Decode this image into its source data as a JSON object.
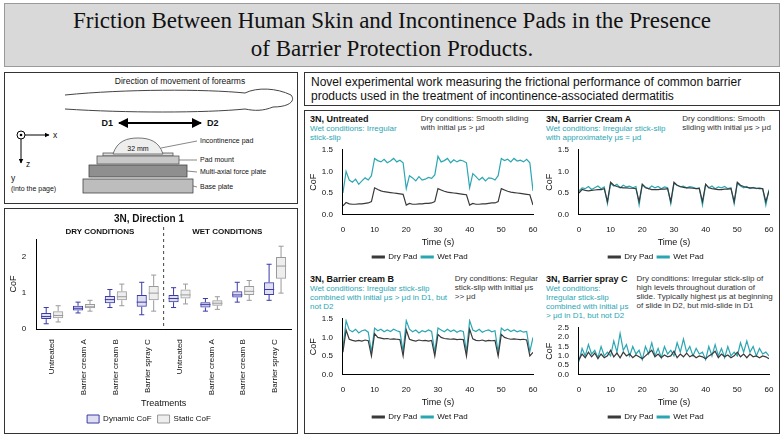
{
  "header": {
    "title": "Friction Between Human Skin and Incontinence Pads in the Presence of Barrier Protection Products."
  },
  "diagram": {
    "direction_label": "Direction of movement of forearms",
    "d1": "D1",
    "d2": "D2",
    "pad": "Incontinence pad",
    "pad_width": "32 mm",
    "mount": "Pad mount",
    "force_plate": "Multi-axial force plate",
    "base_plate": "Base plate",
    "axis_x": "x",
    "axis_y": "y",
    "axis_y_note": "(into the page)",
    "axis_z": "z"
  },
  "heading": "Novel experimental work measuring the frictional performance of common barrier products used in the treatment of incontinence-associated dermatitis",
  "chart_data": [
    {
      "type": "box",
      "title": "3N, Direction 1",
      "groups": [
        "DRY CONDITIONS",
        "WET CONDITIONS"
      ],
      "categories": [
        "Untreated",
        "Barrier cream A",
        "Barrier cream B",
        "Barrier spray C",
        "Untreated",
        "Barrier cream A",
        "Barrier cream B",
        "Barrier spray C"
      ],
      "x_label": "Treatments",
      "y_label": "CoF",
      "ylim": [
        0,
        2.5
      ],
      "yticks": [
        0,
        1,
        2
      ],
      "grid": false,
      "legend": "bottom",
      "series": [
        {
          "name": "Dynamic CoF",
          "color": "#3a3aa8",
          "min": [
            0.15,
            0.45,
            0.6,
            0.4,
            0.6,
            0.5,
            0.75,
            0.8
          ],
          "q1": [
            0.28,
            0.52,
            0.72,
            0.62,
            0.75,
            0.6,
            0.88,
            0.95
          ],
          "median": [
            0.35,
            0.58,
            0.82,
            0.75,
            0.85,
            0.68,
            0.95,
            1.1
          ],
          "q3": [
            0.45,
            0.65,
            0.92,
            0.95,
            0.95,
            0.75,
            1.05,
            1.3
          ],
          "max": [
            0.6,
            0.75,
            1.1,
            1.3,
            1.15,
            0.85,
            1.3,
            1.8
          ]
        },
        {
          "name": "Static CoF",
          "color": "#9a9a9a",
          "min": [
            0.2,
            0.5,
            0.65,
            0.5,
            0.7,
            0.55,
            0.8,
            1.0
          ],
          "q1": [
            0.3,
            0.58,
            0.8,
            0.8,
            0.85,
            0.65,
            0.95,
            1.4
          ],
          "median": [
            0.38,
            0.62,
            0.9,
            1.0,
            0.95,
            0.72,
            1.05,
            1.75
          ],
          "q3": [
            0.5,
            0.7,
            1.05,
            1.2,
            1.1,
            0.8,
            1.2,
            2.0
          ],
          "max": [
            0.65,
            0.8,
            1.25,
            1.5,
            1.25,
            0.9,
            1.35,
            2.3
          ]
        }
      ]
    },
    {
      "type": "line",
      "title": "3N, Untreated",
      "annotations": [
        {
          "text": "Wet conditions: Irregular stick-slip",
          "color": "#2ba6b3"
        },
        {
          "text": "Dry conditions: Smooth sliding with initial μs > μd",
          "color": "#333333"
        }
      ],
      "x": [
        0,
        1,
        2,
        3,
        4,
        5,
        6,
        7,
        8,
        9,
        10,
        11,
        12,
        13,
        14,
        15,
        16,
        17,
        18,
        19,
        20,
        21,
        22,
        23,
        24,
        25,
        26,
        27,
        28,
        29,
        30,
        31,
        32,
        33,
        34,
        35,
        36,
        37,
        38,
        39,
        40,
        41,
        42,
        43,
        44,
        45,
        46,
        47,
        48,
        49,
        50,
        51,
        52,
        53,
        54,
        55,
        56,
        57,
        58,
        59,
        60
      ],
      "xlim": [
        0,
        60
      ],
      "xticks": [
        0,
        10,
        20,
        30,
        40,
        50,
        60
      ],
      "x_label": "Time (s)",
      "y_label": "CoF",
      "ylim": [
        0,
        1.5
      ],
      "yticks": [
        {
          "value": 0,
          "label": "0.0"
        },
        0.5,
        {
          "value": 1,
          "label": "1.0"
        },
        1.5
      ],
      "grid": false,
      "legend": "bottom",
      "series": [
        {
          "name": "Dry Pad",
          "color": "#3a3a3a",
          "values": [
            0.2,
            0.28,
            0.25,
            0.24,
            0.24,
            0.25,
            0.25,
            0.26,
            0.27,
            0.3,
            0.62,
            0.58,
            0.55,
            0.53,
            0.52,
            0.51,
            0.5,
            0.49,
            0.48,
            0.47,
            0.22,
            0.26,
            0.24,
            0.24,
            0.25,
            0.25,
            0.26,
            0.26,
            0.27,
            0.3,
            0.6,
            0.57,
            0.54,
            0.52,
            0.51,
            0.5,
            0.49,
            0.48,
            0.47,
            0.46,
            0.22,
            0.26,
            0.24,
            0.24,
            0.25,
            0.25,
            0.26,
            0.27,
            0.27,
            0.3,
            0.6,
            0.57,
            0.54,
            0.52,
            0.51,
            0.5,
            0.49,
            0.48,
            0.47,
            0.46,
            0.22
          ]
        },
        {
          "name": "Wet Pad",
          "color": "#2ba6b3",
          "values": [
            0.5,
            1.0,
            0.8,
            0.75,
            0.82,
            0.7,
            0.78,
            0.85,
            0.8,
            0.9,
            1.3,
            1.25,
            1.22,
            1.28,
            1.2,
            1.24,
            1.3,
            1.22,
            1.26,
            1.2,
            0.6,
            0.9,
            0.85,
            0.78,
            0.88,
            0.8,
            0.82,
            0.86,
            0.84,
            0.92,
            1.35,
            1.22,
            1.25,
            1.3,
            1.2,
            1.27,
            1.22,
            1.26,
            1.24,
            1.2,
            0.62,
            0.95,
            0.88,
            0.8,
            0.86,
            0.78,
            0.85,
            0.84,
            0.8,
            0.9,
            1.3,
            1.25,
            1.28,
            1.22,
            1.3,
            1.24,
            1.26,
            1.22,
            1.28,
            1.2,
            0.55
          ]
        }
      ]
    },
    {
      "type": "line",
      "title": "3N, Barrier Cream A",
      "annotations": [
        {
          "text": "Wet conditions: Irregular stick-slip with approximately μs = μd",
          "color": "#2ba6b3"
        },
        {
          "text": "Dry conditions: Smooth sliding with initial μs > μd",
          "color": "#333333"
        }
      ],
      "x": [
        0,
        1,
        2,
        3,
        4,
        5,
        6,
        7,
        8,
        9,
        10,
        11,
        12,
        13,
        14,
        15,
        16,
        17,
        18,
        19,
        20,
        21,
        22,
        23,
        24,
        25,
        26,
        27,
        28,
        29,
        30,
        31,
        32,
        33,
        34,
        35,
        36,
        37,
        38,
        39,
        40,
        41,
        42,
        43,
        44,
        45,
        46,
        47,
        48,
        49,
        50,
        51,
        52,
        53,
        54,
        55,
        56,
        57,
        58,
        59,
        60
      ],
      "xlim": [
        0,
        60
      ],
      "xticks": [
        0,
        10,
        20,
        30,
        40,
        50,
        60
      ],
      "x_label": "Time (s)",
      "y_label": "CoF",
      "ylim": [
        0,
        1.5
      ],
      "yticks": [
        {
          "value": 0,
          "label": "0.0"
        },
        0.5,
        {
          "value": 1,
          "label": "1.0"
        },
        1.5
      ],
      "grid": false,
      "legend": "bottom",
      "series": [
        {
          "name": "Dry Pad",
          "color": "#3a3a3a",
          "values": [
            0.5,
            0.58,
            0.56,
            0.55,
            0.56,
            0.57,
            0.58,
            0.58,
            0.6,
            0.3,
            0.75,
            0.68,
            0.65,
            0.63,
            0.62,
            0.62,
            0.61,
            0.61,
            0.6,
            0.3,
            0.7,
            0.62,
            0.6,
            0.58,
            0.58,
            0.58,
            0.59,
            0.59,
            0.6,
            0.3,
            0.75,
            0.68,
            0.65,
            0.63,
            0.62,
            0.62,
            0.61,
            0.6,
            0.6,
            0.3,
            0.7,
            0.62,
            0.6,
            0.59,
            0.58,
            0.58,
            0.59,
            0.59,
            0.6,
            0.3,
            0.75,
            0.68,
            0.65,
            0.63,
            0.62,
            0.62,
            0.61,
            0.6,
            0.6,
            0.3,
            0.55
          ]
        },
        {
          "name": "Wet Pad",
          "color": "#2ba6b3",
          "values": [
            0.55,
            0.62,
            0.6,
            0.65,
            0.58,
            0.62,
            0.66,
            0.6,
            0.64,
            0.25,
            0.72,
            0.66,
            0.7,
            0.62,
            0.68,
            0.64,
            0.66,
            0.62,
            0.65,
            0.22,
            0.7,
            0.64,
            0.6,
            0.66,
            0.62,
            0.65,
            0.6,
            0.64,
            0.62,
            0.25,
            0.72,
            0.68,
            0.64,
            0.66,
            0.62,
            0.65,
            0.63,
            0.6,
            0.62,
            0.22,
            0.7,
            0.62,
            0.66,
            0.6,
            0.64,
            0.62,
            0.65,
            0.6,
            0.62,
            0.25,
            0.72,
            0.66,
            0.62,
            0.65,
            0.6,
            0.63,
            0.6,
            0.62,
            0.6,
            0.22,
            0.58
          ]
        }
      ]
    },
    {
      "type": "line",
      "title": "3N, Barrier cream B",
      "annotations": [
        {
          "text": "Wet conditions: Irregular stick-slip combined with initial μs > μd in D1, but not D2",
          "color": "#2ba6b3"
        },
        {
          "text": "Dry conditions: Regular stick-slip with initial μs >> μd",
          "color": "#333333"
        }
      ],
      "x": [
        0,
        1,
        2,
        3,
        4,
        5,
        6,
        7,
        8,
        9,
        10,
        11,
        12,
        13,
        14,
        15,
        16,
        17,
        18,
        19,
        20,
        21,
        22,
        23,
        24,
        25,
        26,
        27,
        28,
        29,
        30,
        31,
        32,
        33,
        34,
        35,
        36,
        37,
        38,
        39,
        40,
        41,
        42,
        43,
        44,
        45,
        46,
        47,
        48,
        49,
        50,
        51,
        52,
        53,
        54,
        55,
        56,
        57,
        58,
        59,
        60
      ],
      "xlim": [
        0,
        60
      ],
      "xticks": [
        0,
        10,
        20,
        30,
        40,
        50,
        60
      ],
      "x_label": "Time (s)",
      "y_label": "CoF",
      "ylim": [
        0,
        1.5
      ],
      "yticks": [
        {
          "value": 0,
          "label": "0.0"
        },
        0.5,
        {
          "value": 1,
          "label": "1.0"
        },
        1.5
      ],
      "grid": false,
      "legend": "bottom",
      "series": [
        {
          "name": "Dry Pad",
          "color": "#3a3a3a",
          "values": [
            0.6,
            1.2,
            0.95,
            0.92,
            0.9,
            0.92,
            0.9,
            0.93,
            0.91,
            0.5,
            1.1,
            1.0,
            0.98,
            0.96,
            0.97,
            0.95,
            0.96,
            0.95,
            0.94,
            0.5,
            1.2,
            0.95,
            0.92,
            0.9,
            0.93,
            0.91,
            0.92,
            0.9,
            0.92,
            0.5,
            1.08,
            1.0,
            0.97,
            0.96,
            0.95,
            0.96,
            0.94,
            0.95,
            0.94,
            0.5,
            1.22,
            0.96,
            0.92,
            0.91,
            0.93,
            0.9,
            0.92,
            0.91,
            0.92,
            0.5,
            1.08,
            1.0,
            0.97,
            0.95,
            0.96,
            0.95,
            0.94,
            0.95,
            0.93,
            0.5,
            0.6
          ]
        },
        {
          "name": "Wet Pad",
          "color": "#2ba6b3",
          "values": [
            0.7,
            1.45,
            1.2,
            1.15,
            1.22,
            1.12,
            1.18,
            1.2,
            1.14,
            0.6,
            1.25,
            1.18,
            1.22,
            1.15,
            1.2,
            1.16,
            1.22,
            1.18,
            1.15,
            0.62,
            1.45,
            1.22,
            1.15,
            1.2,
            1.12,
            1.18,
            1.15,
            1.2,
            1.16,
            0.6,
            1.25,
            1.2,
            1.15,
            1.22,
            1.16,
            1.2,
            1.14,
            1.18,
            1.16,
            0.62,
            1.45,
            1.2,
            1.16,
            1.22,
            1.14,
            1.18,
            1.2,
            1.15,
            1.18,
            0.6,
            1.25,
            1.18,
            1.22,
            1.16,
            1.2,
            1.15,
            1.18,
            1.14,
            1.16,
            0.62,
            1.0
          ]
        }
      ]
    },
    {
      "type": "line",
      "title": "3N, Barrier spray C",
      "annotations": [
        {
          "text": "Wet conditions: Irregular stick-slip combined with initial μs > μd in D1, but not D2",
          "color": "#2ba6b3"
        },
        {
          "text": "Dry conditions: Irregular stick-slip of high levels throughout duration of slide. Typically highest μs at beginning of slide in D2, but mid-slide in D1",
          "color": "#333333"
        }
      ],
      "x": [
        0,
        1,
        2,
        3,
        4,
        5,
        6,
        7,
        8,
        9,
        10,
        11,
        12,
        13,
        14,
        15,
        16,
        17,
        18,
        19,
        20,
        21,
        22,
        23,
        24,
        25,
        26,
        27,
        28,
        29,
        30,
        31,
        32,
        33,
        34,
        35,
        36,
        37,
        38,
        39,
        40,
        41,
        42,
        43,
        44,
        45,
        46,
        47,
        48,
        49,
        50,
        51,
        52,
        53,
        54,
        55,
        56,
        57,
        58,
        59,
        60
      ],
      "xlim": [
        0,
        60
      ],
      "xticks": [
        0,
        10,
        20,
        30,
        40,
        50,
        60
      ],
      "x_label": "Time (s)",
      "y_label": "CoF",
      "ylim": [
        0,
        2.5
      ],
      "yticks": [
        {
          "value": 0,
          "label": "0.0"
        },
        0.5,
        {
          "value": 1,
          "label": "1.0"
        },
        1.5,
        {
          "value": 2,
          "label": "2.0"
        },
        2.5
      ],
      "grid": false,
      "legend": "bottom",
      "series": [
        {
          "name": "Dry Pad",
          "color": "#3a3a3a",
          "values": [
            0.8,
            1.1,
            0.9,
            1.2,
            0.95,
            1.15,
            0.85,
            1.1,
            0.9,
            1.0,
            1.3,
            0.95,
            1.15,
            0.9,
            1.2,
            1.0,
            1.1,
            0.9,
            1.05,
            0.95,
            0.85,
            1.0,
            1.15,
            1.3,
            0.95,
            1.1,
            0.9,
            1.05,
            0.95,
            1.0,
            1.25,
            0.9,
            1.1,
            0.95,
            1.15,
            0.95,
            1.05,
            0.9,
            1.0,
            0.95,
            0.85,
            1.0,
            1.1,
            1.25,
            0.9,
            1.1,
            0.95,
            1.05,
            0.9,
            1.0,
            1.2,
            0.95,
            1.1,
            0.9,
            1.1,
            0.95,
            1.0,
            0.9,
            1.0,
            0.95,
            0.85
          ]
        },
        {
          "name": "Wet Pad",
          "color": "#2ba6b3",
          "values": [
            0.7,
            1.4,
            1.0,
            1.6,
            1.1,
            1.3,
            0.9,
            1.5,
            1.0,
            1.2,
            1.0,
            1.8,
            1.2,
            2.2,
            1.3,
            1.6,
            1.0,
            1.5,
            1.1,
            1.3,
            0.8,
            1.5,
            1.1,
            1.7,
            1.0,
            1.4,
            0.9,
            1.5,
            1.1,
            1.3,
            1.0,
            1.7,
            1.2,
            1.9,
            1.2,
            1.5,
            1.0,
            1.4,
            1.1,
            1.2,
            0.8,
            1.5,
            1.0,
            1.6,
            1.0,
            1.4,
            0.9,
            1.5,
            1.0,
            1.2,
            1.0,
            1.7,
            1.2,
            1.8,
            1.2,
            1.5,
            1.0,
            1.4,
            1.1,
            1.2,
            1.0
          ]
        }
      ]
    }
  ]
}
